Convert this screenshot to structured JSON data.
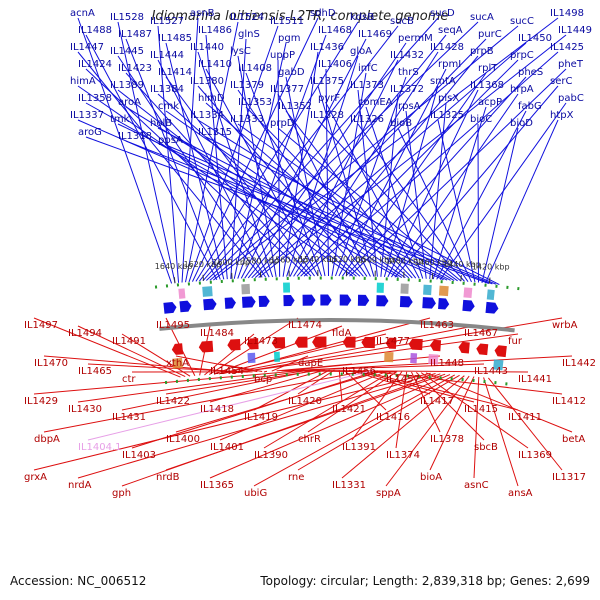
{
  "title": "Idiomarina loihiensis L2TR, complete genome",
  "accession": "Accession: NC_006512",
  "summary": "Topology: circular; Length: 2,839,318 bp; Genes: 2,699",
  "colors": {
    "forward": "#1010dd",
    "reverse": "#dd1010",
    "highlight": "#e7a0e7",
    "backbone": "#888888",
    "ring_dots": "#2a9a2a",
    "label_forward": "#0a0aa0",
    "label_reverse": "#b00000"
  },
  "ticks": [
    "1640 kbp",
    "1620 kbp",
    "1600 kbp",
    "1580 kbp",
    "1560 kbp",
    "1540 kbp",
    "1520 kbp",
    "1500 kbp",
    "1480 kbp",
    "1460 kbp",
    "1440 kbp",
    "1420 kbp"
  ],
  "top_labels": [
    "acnA",
    "IL1528",
    "IL1527",
    "asnB",
    "IL1524",
    "IL1511",
    "sdhD",
    "kdsB",
    "sucB",
    "sucD",
    "sucA",
    "sucC",
    "IL1498",
    "IL1488",
    "IL1487",
    "IL1485",
    "IL1486",
    "glnS",
    "pgm",
    "IL1468",
    "IL1469",
    "permM",
    "seqA",
    "purC",
    "IL1450",
    "IL1449",
    "IL1447",
    "IL1445",
    "IL1444",
    "IL1440",
    "lysC",
    "uppP",
    "IL1436",
    "gloA",
    "IL1432",
    "IL1428",
    "prpB",
    "prpC",
    "IL1425",
    "IL1424",
    "IL1423",
    "IL1414",
    "IL1410",
    "IL1408",
    "gabD",
    "IL1406",
    "infC",
    "thrS",
    "rpmI",
    "rplT",
    "pheS",
    "pheT",
    "himA",
    "IL1389",
    "IL1384",
    "IL1380",
    "IL1379",
    "IL1377",
    "IL1375",
    "IL1373",
    "IL1372",
    "smtA",
    "IL1368",
    "hrpA",
    "serC",
    "IL1358",
    "aroA",
    "cmk",
    "himD",
    "IL1353",
    "IL1352",
    "pyrF",
    "comEA",
    "rpsA",
    "plsX",
    "acpP",
    "fabG",
    "pabC",
    "IL1337",
    "tmk",
    "holB",
    "IL1334",
    "IL1333",
    "prpD",
    "IL1328",
    "IL1326",
    "bioB",
    "IL1325",
    "bioC",
    "bioD",
    "htpX",
    "aroG",
    "IL1318",
    "ppsA",
    "IL1315"
  ],
  "bottom_labels": [
    "IL1497",
    "IL1494",
    "IL1491",
    "IL1495",
    "IL1484",
    "IL1473",
    "IL1474",
    "fldA",
    "IL1477",
    "IL1463",
    "IL1467",
    "fur",
    "wrbA",
    "IL1470",
    "IL1465",
    "ctr",
    "xthA",
    "IL1454",
    "bcp",
    "dapE",
    "IL1456",
    "IL1457",
    "IL1448",
    "IL1443",
    "IL1441",
    "IL1442",
    "IL1429",
    "IL1430",
    "IL1431",
    "IL1422",
    "IL1418",
    "IL1419",
    "IL1420",
    "IL1421",
    "IL1416",
    "IL1417",
    "IL1415",
    "IL1411",
    "IL1412",
    "dbpA",
    "IL1404.1",
    "IL1403",
    "IL1400",
    "IL1401",
    "IL1390",
    "chrR",
    "IL1391",
    "IL1374",
    "IL1378",
    "sbcB",
    "IL1369",
    "betA",
    "grxA",
    "nrdA",
    "gph",
    "nrdB",
    "IL1365",
    "ubiG",
    "rne",
    "IL1331",
    "sppA",
    "bioA",
    "asnC",
    "ansA",
    "IL1317"
  ]
}
